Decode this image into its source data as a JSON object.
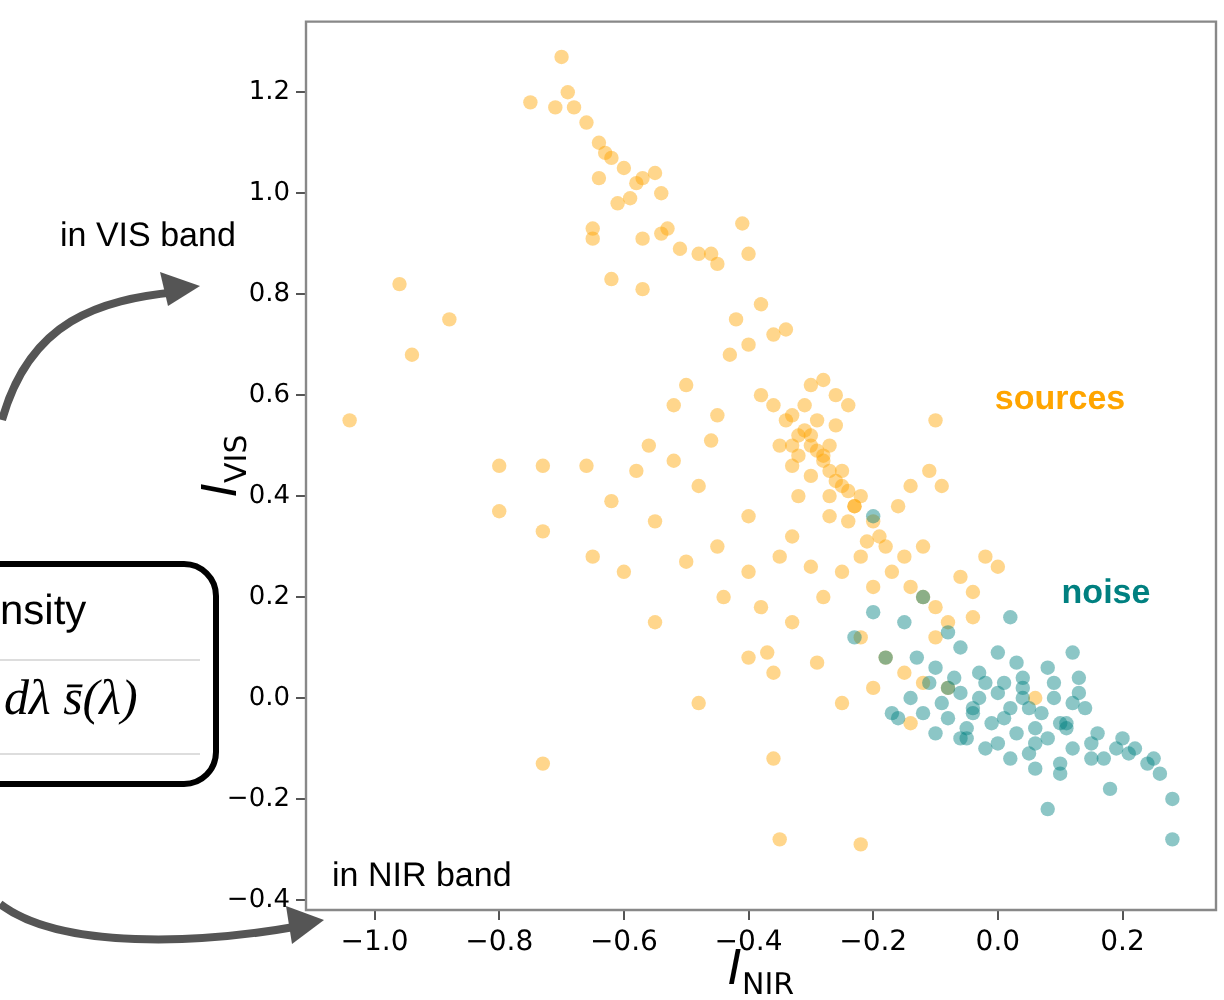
{
  "chart_data": {
    "type": "scatter",
    "xlabel": "I$_{NIR}$",
    "ylabel": "I$_{VIS}$",
    "annotations": [
      "in VIS band",
      "nsity",
      "dλ s̄(λ)",
      "in NIR band"
    ],
    "xlim": [
      -1.11,
      0.35
    ],
    "ylim": [
      -0.42,
      1.34
    ],
    "xticks": [
      {
        "value": -1.0,
        "label": "−1.0"
      },
      {
        "value": -0.8,
        "label": "−0.8"
      },
      {
        "value": -0.6,
        "label": "−0.6"
      },
      {
        "value": -0.4,
        "label": "−0.4"
      },
      {
        "value": -0.2,
        "label": "−0.2"
      },
      {
        "value": 0,
        "label": "0.0"
      },
      {
        "value": 0.2,
        "label": "0.2"
      }
    ],
    "yticks": [
      {
        "value": -0.4,
        "label": "−0.4"
      },
      {
        "value": -0.2,
        "label": "−0.2"
      },
      {
        "value": 0,
        "label": "0.0"
      },
      {
        "value": 0.2,
        "label": "0.2"
      },
      {
        "value": 0.4,
        "label": "0.4"
      },
      {
        "value": 0.6,
        "label": "0.6"
      },
      {
        "value": 0.8,
        "label": "0.8"
      },
      {
        "value": 1.0,
        "label": "1.0"
      },
      {
        "value": 1.2,
        "label": "1.2"
      }
    ],
    "grid": false,
    "legend": false,
    "marker": "circle",
    "series": [
      {
        "name": "sources",
        "color": "#ffa500",
        "x": [
          -0.7,
          -0.75,
          -0.69,
          -0.71,
          -0.68,
          -0.66,
          -0.64,
          -0.63,
          -0.62,
          -0.6,
          -0.64,
          -0.57,
          -0.55,
          -0.58,
          -0.54,
          -0.61,
          -0.59,
          -0.65,
          -0.65,
          -0.57,
          -0.53,
          -0.54,
          -0.51,
          -0.48,
          -0.45,
          -0.46,
          -0.4,
          -0.62,
          -0.57,
          -0.41,
          -0.96,
          -0.94,
          -0.88,
          -1.04,
          -0.8,
          -0.73,
          -0.66,
          -0.73,
          -0.8,
          -0.73,
          -0.35,
          -0.22,
          -0.36,
          -0.48,
          -0.5,
          -0.45,
          -0.43,
          -0.4,
          -0.36,
          -0.34,
          -0.38,
          -0.36,
          -0.33,
          -0.3,
          -0.28,
          -0.32,
          -0.3,
          -0.28,
          -0.26,
          -0.25,
          -0.24,
          -0.22,
          -0.23,
          -0.2,
          -0.19,
          -0.18,
          -0.15,
          -0.17,
          -0.14,
          -0.12,
          -0.1,
          -0.08,
          -0.06,
          -0.04,
          -0.12,
          -0.21,
          -0.27,
          -0.3,
          -0.33,
          -0.35,
          -0.31,
          -0.29,
          -0.27,
          -0.24,
          -0.22,
          -0.2,
          -0.25,
          -0.3,
          -0.35,
          -0.4,
          -0.45,
          -0.5,
          -0.55,
          -0.58,
          -0.52,
          -0.48,
          -0.44,
          -0.38,
          -0.33,
          -0.28,
          -0.22,
          -0.18,
          -0.15,
          -0.12,
          -0.2,
          -0.25,
          -0.14,
          -0.4,
          -0.37,
          -0.36,
          -0.29,
          -0.33,
          -0.4,
          -0.46,
          -0.52,
          -0.56,
          -0.42,
          -0.38,
          -0.62,
          -0.55,
          -0.6,
          -0.65,
          0.06,
          -0.08,
          -0.1,
          -0.02,
          0.0,
          -0.04,
          -0.16,
          -0.14,
          -0.11,
          -0.09,
          -0.32,
          -0.26,
          -0.24,
          -0.1,
          -0.31,
          -0.29,
          -0.27,
          -0.32,
          -0.34,
          -0.26,
          -0.28,
          -0.3,
          -0.33,
          -0.25,
          -0.23,
          -0.27
        ],
        "values": [
          1.27,
          1.18,
          1.2,
          1.17,
          1.17,
          1.14,
          1.1,
          1.08,
          1.07,
          1.05,
          1.03,
          1.03,
          1.04,
          1.02,
          1.0,
          0.98,
          0.99,
          0.93,
          0.91,
          0.91,
          0.93,
          0.92,
          0.89,
          0.88,
          0.86,
          0.88,
          0.88,
          0.83,
          0.81,
          0.94,
          0.82,
          0.68,
          0.75,
          0.55,
          0.46,
          0.46,
          0.46,
          0.33,
          0.37,
          -0.13,
          -0.28,
          -0.29,
          -0.12,
          -0.01,
          0.62,
          0.56,
          0.68,
          0.7,
          0.72,
          0.73,
          0.6,
          0.58,
          0.56,
          0.62,
          0.63,
          0.52,
          0.5,
          0.48,
          0.54,
          0.45,
          0.41,
          0.4,
          0.38,
          0.35,
          0.32,
          0.3,
          0.28,
          0.25,
          0.22,
          0.2,
          0.18,
          0.15,
          0.24,
          0.21,
          0.3,
          0.31,
          0.4,
          0.44,
          0.46,
          0.5,
          0.58,
          0.55,
          0.5,
          0.35,
          0.28,
          0.22,
          0.25,
          0.26,
          0.28,
          0.25,
          0.3,
          0.27,
          0.35,
          0.45,
          0.47,
          0.42,
          0.2,
          0.18,
          0.15,
          0.2,
          0.12,
          0.08,
          0.05,
          0.03,
          0.02,
          -0.01,
          -0.05,
          0.08,
          0.09,
          0.05,
          0.07,
          0.32,
          0.36,
          0.51,
          0.58,
          0.5,
          0.75,
          0.78,
          0.39,
          0.15,
          0.25,
          0.28,
          0.0,
          0.02,
          0.12,
          0.28,
          0.26,
          0.16,
          0.38,
          0.42,
          0.45,
          0.42,
          0.4,
          0.6,
          0.58,
          0.55,
          0.53,
          0.49,
          0.45,
          0.48,
          0.55,
          0.43,
          0.47,
          0.52,
          0.5,
          0.42,
          0.38,
          0.36
        ]
      },
      {
        "name": "noise",
        "color": "#008080",
        "x": [
          -0.2,
          -0.15,
          -0.12,
          -0.08,
          -0.06,
          0.02,
          -0.18,
          -0.23,
          -0.2,
          0.28,
          0.28,
          0.18,
          0.08,
          0.25,
          0.22,
          0.2,
          0.26,
          0.15,
          0.12,
          0.1,
          0.05,
          0.0,
          -0.05,
          -0.1,
          -0.12,
          -0.08,
          -0.03,
          0.03,
          0.08,
          0.13,
          0.14,
          0.11,
          0.06,
          0.01,
          -0.04,
          -0.09,
          -0.11,
          -0.07,
          -0.02,
          0.04,
          0.09,
          0.12,
          0.07,
          0.02,
          -0.03,
          -0.06,
          0.0,
          0.05,
          0.1,
          -0.01,
          -0.05,
          0.03,
          0.08,
          0.11,
          0.06,
          -0.08,
          -0.04,
          0.01,
          0.04,
          0.09,
          0.13,
          0.16,
          0.19,
          0.15,
          0.17,
          -0.14,
          -0.16,
          -0.1,
          -0.13,
          0.0,
          0.02,
          -0.02,
          0.06,
          0.1,
          0.04,
          -0.06,
          -0.17,
          0.12,
          0.21,
          0.24
        ],
        "values": [
          0.17,
          0.15,
          0.2,
          0.13,
          0.1,
          0.16,
          0.08,
          0.12,
          0.36,
          -0.2,
          -0.28,
          -0.18,
          -0.22,
          -0.12,
          -0.1,
          -0.08,
          -0.15,
          -0.12,
          -0.1,
          -0.13,
          -0.11,
          -0.09,
          -0.08,
          -0.07,
          -0.03,
          0.02,
          0.05,
          0.07,
          0.06,
          0.04,
          -0.02,
          -0.05,
          -0.06,
          -0.04,
          -0.03,
          -0.01,
          0.03,
          0.04,
          0.03,
          0.02,
          0.0,
          -0.01,
          -0.03,
          -0.02,
          0.0,
          0.01,
          0.01,
          -0.02,
          -0.05,
          -0.05,
          -0.06,
          -0.07,
          -0.08,
          -0.06,
          -0.09,
          -0.04,
          -0.02,
          0.03,
          0.04,
          0.03,
          0.01,
          -0.07,
          -0.1,
          -0.09,
          -0.12,
          0.0,
          -0.04,
          0.06,
          0.08,
          0.09,
          -0.12,
          -0.1,
          -0.14,
          -0.15,
          0.0,
          -0.08,
          -0.03,
          0.09,
          -0.11,
          -0.13
        ]
      }
    ]
  }
}
